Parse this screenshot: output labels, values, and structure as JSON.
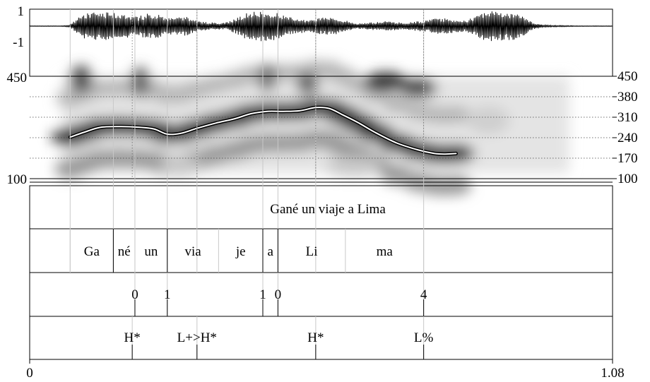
{
  "waveform": {
    "amplitude_top": "1",
    "amplitude_bottom": "-1",
    "envelope": [
      0.02,
      0.02,
      0.02,
      0.02,
      0.05,
      0.55,
      0.95,
      0.85,
      0.9,
      0.8,
      0.7,
      0.6,
      0.8,
      0.75,
      0.5,
      0.55,
      0.6,
      0.3,
      0.25,
      0.2,
      0.25,
      0.5,
      0.85,
      0.95,
      0.9,
      0.85,
      0.6,
      0.45,
      0.4,
      0.5,
      0.55,
      0.5,
      0.35,
      0.15,
      0.2,
      0.25,
      0.3,
      0.25,
      0.2,
      0.3,
      0.35,
      0.45,
      0.5,
      0.4,
      0.35,
      0.55,
      0.9,
      0.95,
      0.9,
      0.85,
      0.6,
      0.2,
      0.08,
      0.05,
      0.04,
      0.03,
      0.02,
      0.02,
      0.02,
      0.02
    ]
  },
  "pitch_panel": {
    "left_top_label": "450",
    "left_bottom_label": "100",
    "right_ticks": [
      "450",
      "380",
      "310",
      "240",
      "170",
      "100"
    ],
    "y_range_hz": [
      100,
      450
    ],
    "gridline_hz": [
      380,
      310,
      240,
      170
    ],
    "contour_hz": [
      [
        0.075,
        242
      ],
      [
        0.1,
        258
      ],
      [
        0.13,
        275
      ],
      [
        0.165,
        278
      ],
      [
        0.2,
        276
      ],
      [
        0.23,
        270
      ],
      [
        0.255,
        252
      ],
      [
        0.28,
        255
      ],
      [
        0.31,
        272
      ],
      [
        0.345,
        290
      ],
      [
        0.38,
        305
      ],
      [
        0.41,
        322
      ],
      [
        0.44,
        330
      ],
      [
        0.47,
        330
      ],
      [
        0.5,
        332
      ],
      [
        0.53,
        343
      ],
      [
        0.555,
        340
      ],
      [
        0.58,
        318
      ],
      [
        0.61,
        290
      ],
      [
        0.64,
        258
      ],
      [
        0.68,
        222
      ],
      [
        0.72,
        198
      ],
      [
        0.75,
        186
      ],
      [
        0.77,
        184
      ],
      [
        0.79,
        186
      ]
    ]
  },
  "tiers": {
    "sentence": {
      "text": "Gané un viaje a Lima"
    },
    "syllables": [
      {
        "text": "Ga",
        "start": 0.075,
        "end": 0.155
      },
      {
        "text": "né",
        "start": 0.155,
        "end": 0.195
      },
      {
        "text": "un",
        "start": 0.195,
        "end": 0.255
      },
      {
        "text": "via",
        "start": 0.255,
        "end": 0.35
      },
      {
        "text": "je",
        "start": 0.35,
        "end": 0.432
      },
      {
        "text": "a",
        "start": 0.432,
        "end": 0.46
      },
      {
        "text": "Li",
        "start": 0.46,
        "end": 0.585
      },
      {
        "text": "ma",
        "start": 0.585,
        "end": 0.73
      }
    ],
    "break_indices": [
      {
        "label": "0",
        "time": 0.195
      },
      {
        "label": "1",
        "time": 0.255
      },
      {
        "label": "1",
        "time": 0.432
      },
      {
        "label": "0",
        "time": 0.46
      },
      {
        "label": "4",
        "time": 0.73
      }
    ],
    "tones": [
      {
        "label": "H*",
        "time": 0.19
      },
      {
        "label": "L+>H*",
        "time": 0.31
      },
      {
        "label": "H*",
        "time": 0.53
      },
      {
        "label": "L%",
        "time": 0.73
      }
    ]
  },
  "time_axis": {
    "start_label": "0",
    "end_label": "1.08",
    "range": [
      0,
      1.08
    ]
  },
  "colors": {
    "line": "#000000",
    "grid": "#555555",
    "faint": "#bbbbbb",
    "contour_outline": "#000000",
    "contour_inner": "#ffffff"
  }
}
